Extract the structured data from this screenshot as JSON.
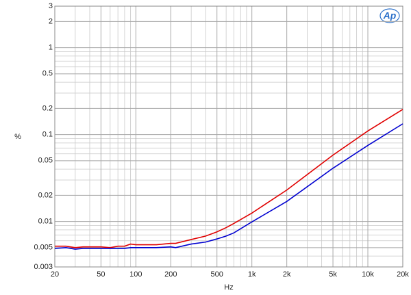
{
  "chart_data": {
    "type": "line",
    "log_x": true,
    "log_y": true,
    "grid": true,
    "x_label": "Hz",
    "y_label": "%",
    "logo": "Ap",
    "xlim": [
      20,
      20000
    ],
    "xticks": [
      20,
      50,
      100,
      200,
      500,
      {
        "value": 1000,
        "label": "1k"
      },
      {
        "value": 2000,
        "label": "2k"
      },
      {
        "value": 5000,
        "label": "5k"
      },
      {
        "value": 10000,
        "label": "10k"
      },
      {
        "value": 20000,
        "label": "20k"
      }
    ],
    "x_minor_ticks": [
      30,
      40,
      60,
      70,
      80,
      90,
      300,
      400,
      600,
      700,
      800,
      900,
      3000,
      4000,
      6000,
      7000,
      8000,
      9000
    ],
    "ylim": [
      0.003,
      3
    ],
    "yticks": [
      0.003,
      0.005,
      0.01,
      0.02,
      0.05,
      0.1,
      0.2,
      0.5,
      1,
      2,
      3
    ],
    "y_minor_ticks": [
      0.004,
      0.006,
      0.007,
      0.008,
      0.009,
      0.03,
      0.04,
      0.06,
      0.07,
      0.08,
      0.09,
      0.3,
      0.4,
      0.6,
      0.7,
      0.8,
      0.9
    ],
    "x": [
      20,
      25,
      30,
      35,
      50,
      60,
      70,
      80,
      90,
      100,
      150,
      200,
      220,
      300,
      400,
      500,
      600,
      700,
      1000,
      2000,
      5000,
      10000,
      20000
    ],
    "series": [
      {
        "color": "#e00000",
        "values": [
          0.0052,
          0.0052,
          0.005,
          0.0051,
          0.0051,
          0.005,
          0.0052,
          0.0052,
          0.0055,
          0.0054,
          0.0054,
          0.0056,
          0.0056,
          0.0062,
          0.0068,
          0.0076,
          0.0085,
          0.0095,
          0.0125,
          0.023,
          0.058,
          0.11,
          0.195
        ]
      },
      {
        "color": "#0000d0",
        "values": [
          0.0049,
          0.005,
          0.0048,
          0.0049,
          0.0049,
          0.0049,
          0.0049,
          0.0049,
          0.005,
          0.005,
          0.005,
          0.0051,
          0.005,
          0.0055,
          0.0058,
          0.0063,
          0.0068,
          0.0074,
          0.0099,
          0.017,
          0.041,
          0.075,
          0.133
        ]
      }
    ]
  }
}
